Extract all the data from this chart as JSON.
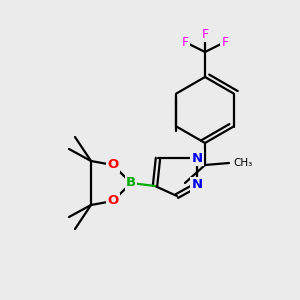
{
  "background_color": "#ebebeb",
  "atom_colors": {
    "C": "#000000",
    "H": "#000000",
    "N": "#0000ee",
    "O": "#ff0000",
    "B": "#00aa00",
    "F": "#ff00ff"
  },
  "bond_color": "#000000",
  "figsize": [
    3.0,
    3.0
  ],
  "dpi": 100
}
